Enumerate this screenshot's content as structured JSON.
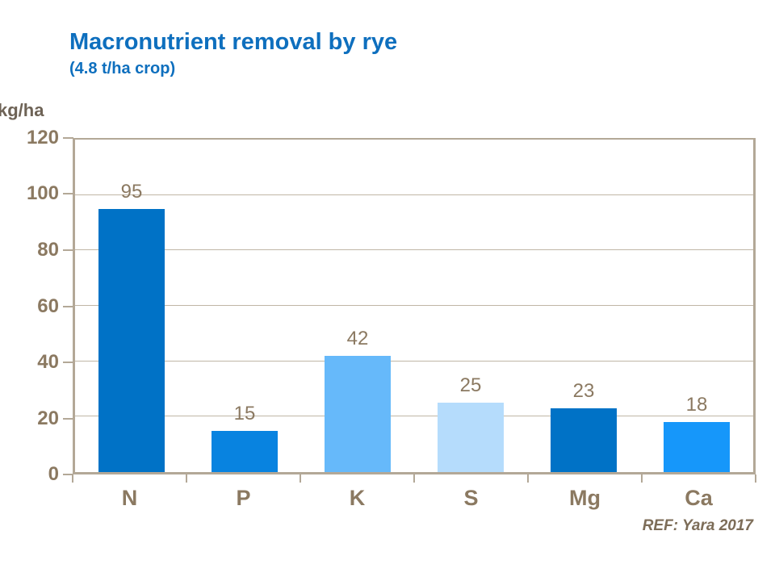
{
  "slide": {
    "title": "Macronutrient removal by rye",
    "subtitle": "(4.8 t/ha crop)",
    "y_axis_unit": "kg/ha",
    "reference": "REF: Yara 2017"
  },
  "colors": {
    "background": "#FFFFFF",
    "title": "#0E6FBE",
    "axis_text": "#8B7961",
    "unit_text": "#6E6356",
    "reference_text": "#7D6D58",
    "axis_line": "#B3A897",
    "gridline": "#C0B6A6"
  },
  "chart_data": {
    "type": "bar",
    "title": "Macronutrient removal by rye",
    "subtitle": "(4.8 t/ha crop)",
    "categories": [
      "N",
      "P",
      "K",
      "S",
      "Mg",
      "Ca"
    ],
    "values": [
      95,
      15,
      42,
      25,
      23,
      18
    ],
    "bar_colors": [
      "#0072C6",
      "#0883E0",
      "#66B9FA",
      "#B5DCFC",
      "#0072C6",
      "#1697FA"
    ],
    "ylabel": "kg/ha",
    "ylim": [
      0,
      120
    ],
    "yticks": [
      0,
      20,
      40,
      60,
      80,
      100,
      120
    ],
    "grid": "horizontal-only",
    "legend_position": "none",
    "data_labels": true,
    "annotation": "REF: Yara 2017"
  }
}
